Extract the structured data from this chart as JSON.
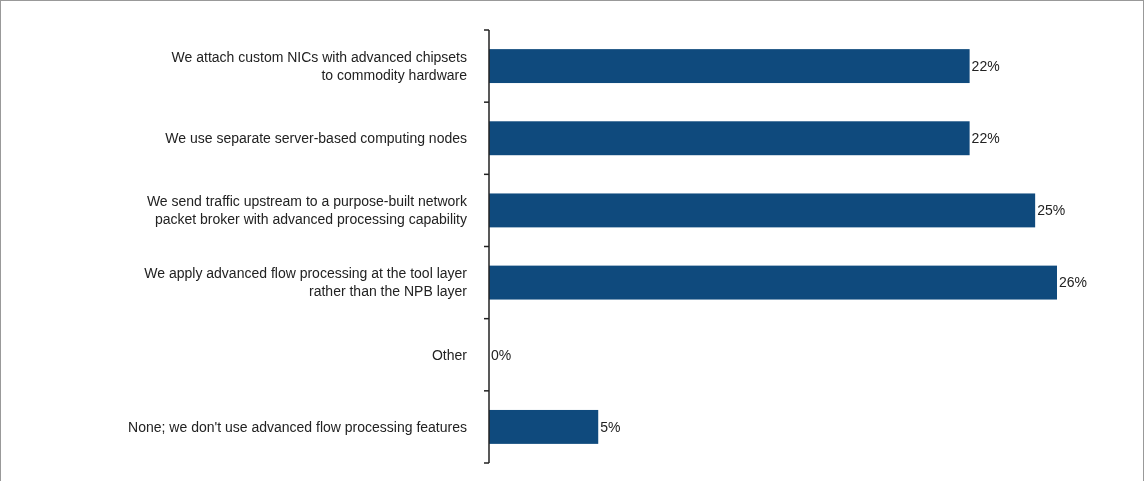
{
  "chart_data": {
    "type": "bar",
    "orientation": "horizontal",
    "categories": [
      "We attach custom NICs with advanced chipsets\nto commodity hardware",
      "We use separate server-based computing nodes",
      "We send traffic upstream to a purpose-built network\npacket broker with advanced processing capability",
      "We apply advanced flow processing at the tool layer\nrather than the NPB layer",
      "Other",
      "None; we don't use advanced flow processing features"
    ],
    "values": [
      22,
      22,
      25,
      26,
      0,
      5
    ],
    "value_labels": [
      "22%",
      "22%",
      "25%",
      "26%",
      "0%",
      "5%"
    ],
    "color": "#0f4a7d"
  }
}
